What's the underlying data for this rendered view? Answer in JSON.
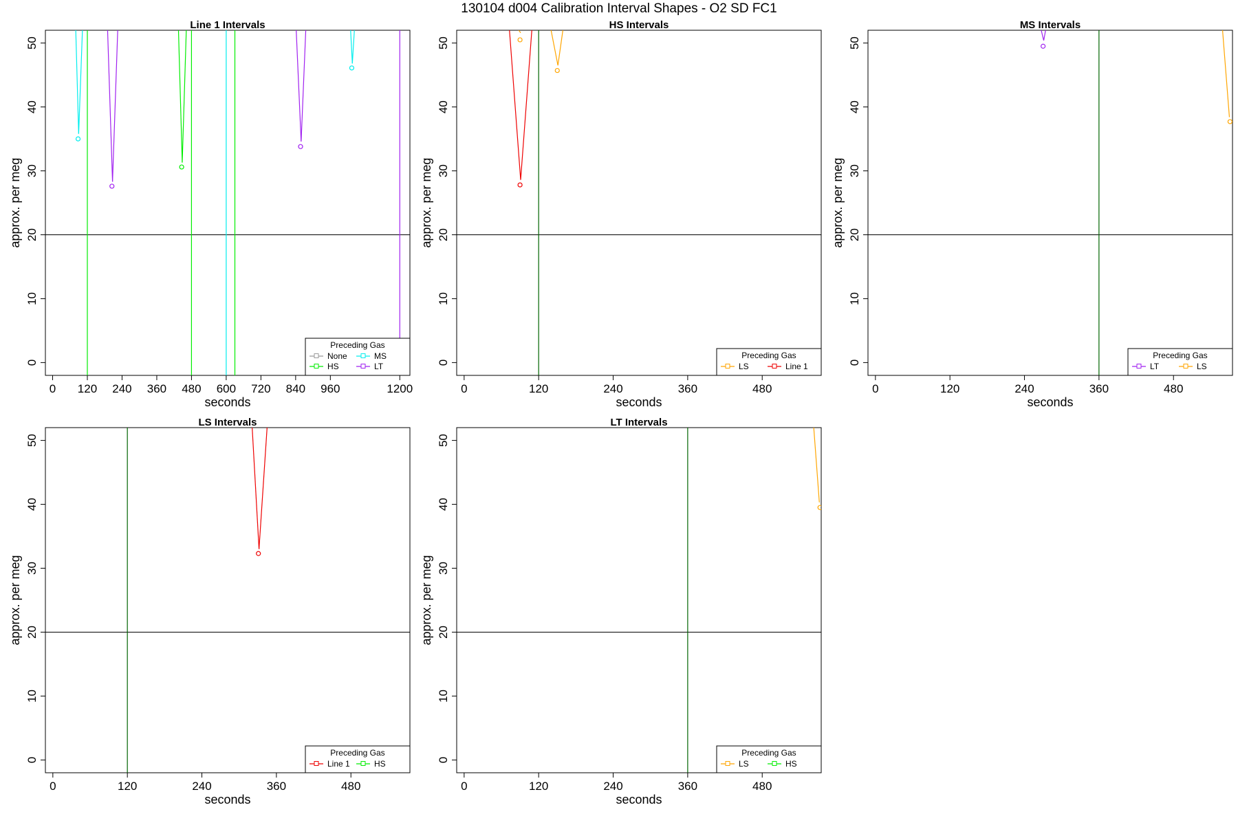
{
  "figure_title": "130104   d004   Calibration Interval Shapes - O2 SD FC1",
  "colors": {
    "None": "#999999",
    "HS": "#00ee00",
    "MS": "#00eeee",
    "LT": "#a020f0",
    "LS": "#ffa500",
    "Line 1": "#ee0000",
    "axis": "#000000",
    "hline": "#000000",
    "vline": "#006400"
  },
  "chart_data": [
    {
      "type": "line",
      "title": "Line 1 Intervals",
      "xlabel": "seconds",
      "ylabel": "approx. per meg",
      "xlim": [
        -25,
        1235
      ],
      "ylim": [
        -2,
        52
      ],
      "xticks": [
        0,
        120,
        240,
        360,
        480,
        600,
        720,
        840,
        960,
        1200
      ],
      "yticks": [
        0,
        10,
        20,
        30,
        40,
        50
      ],
      "hline": 20,
      "vlines": [
        {
          "x": 120,
          "series": "HS"
        },
        {
          "x": 480,
          "series": "HS"
        },
        {
          "x": 600,
          "series": "MS"
        },
        {
          "x": 630,
          "series": "HS"
        },
        {
          "x": 1200,
          "series": "LT"
        }
      ],
      "legend": {
        "title": "Preceding Gas",
        "position": "bottom-right",
        "entries": [
          "None",
          "HS",
          "MS",
          "LT"
        ]
      },
      "series": [
        {
          "name": "MS",
          "lines": [
            [
              [
                80,
                52
              ],
              [
                90,
                35.8
              ]
            ],
            [
              [
                90,
                35.8
              ],
              [
                103,
                52
              ]
            ]
          ],
          "points": [
            [
              88,
              35
            ]
          ]
        },
        {
          "name": "LT",
          "lines": [
            [
              [
                190,
                52
              ],
              [
                207,
                28.3
              ]
            ],
            [
              [
                207,
                28.3
              ],
              [
                225,
                52
              ]
            ]
          ],
          "points": [
            [
              205,
              27.6
            ]
          ]
        },
        {
          "name": "HS",
          "lines": [
            [
              [
                435,
                52
              ],
              [
                448,
                31.3
              ]
            ],
            [
              [
                448,
                31.3
              ],
              [
                462,
                52
              ]
            ]
          ],
          "points": [
            [
              446,
              30.6
            ]
          ]
        },
        {
          "name": "LT",
          "lines": [
            [
              [
                842,
                52
              ],
              [
                859,
                34.6
              ]
            ],
            [
              [
                859,
                34.6
              ],
              [
                875,
                52
              ]
            ]
          ],
          "points": [
            [
              857,
              33.8
            ]
          ]
        },
        {
          "name": "MS",
          "lines": [
            [
              [
                1030,
                52
              ],
              [
                1036,
                46.8
              ]
            ],
            [
              [
                1036,
                46.8
              ],
              [
                1043,
                52
              ]
            ]
          ],
          "points": [
            [
              1034,
              46.1
            ]
          ]
        }
      ]
    },
    {
      "type": "line",
      "title": "HS Intervals",
      "xlabel": "seconds",
      "ylabel": "approx. per meg",
      "xlim": [
        -12,
        575
      ],
      "ylim": [
        -2,
        52
      ],
      "xticks": [
        0,
        120,
        240,
        360,
        480
      ],
      "yticks": [
        0,
        10,
        20,
        30,
        40,
        50
      ],
      "hline": 20,
      "vlines": [
        {
          "x": 120,
          "series": "default"
        }
      ],
      "legend": {
        "title": "Preceding Gas",
        "position": "bottom-right",
        "entries": [
          "LS",
          "Line 1"
        ]
      },
      "series": [
        {
          "name": "Line 1",
          "lines": [
            [
              [
                73,
                52
              ],
              [
                91,
                28.6
              ]
            ],
            [
              [
                91,
                28.6
              ],
              [
                109,
                52
              ]
            ]
          ],
          "points": [
            [
              90,
              27.8
            ]
          ]
        },
        {
          "name": "LS",
          "lines": [
            [
              [
                88,
                52
              ],
              [
                91,
                51.6
              ]
            ]
          ],
          "points": [
            [
              90,
              50.5
            ]
          ]
        },
        {
          "name": "LS",
          "lines": [
            [
              [
                140,
                52
              ],
              [
                151,
                46.5
              ]
            ],
            [
              [
                151,
                46.5
              ],
              [
                159,
                52
              ]
            ]
          ],
          "points": [
            [
              150,
              45.7
            ]
          ]
        }
      ]
    },
    {
      "type": "line",
      "title": "MS Intervals",
      "xlabel": "seconds",
      "ylabel": "approx. per meg",
      "xlim": [
        -12,
        575
      ],
      "ylim": [
        -2,
        52
      ],
      "xticks": [
        0,
        120,
        240,
        360,
        480
      ],
      "yticks": [
        0,
        10,
        20,
        30,
        40,
        50
      ],
      "hline": 20,
      "vlines": [
        {
          "x": 360,
          "series": "default"
        }
      ],
      "legend": {
        "title": "Preceding Gas",
        "position": "bottom-right",
        "entries": [
          "LT",
          "LS"
        ]
      },
      "series": [
        {
          "name": "LT",
          "lines": [
            [
              [
                267,
                52
              ],
              [
                271,
                50.4
              ]
            ],
            [
              [
                271,
                50.4
              ],
              [
                274,
                52
              ]
            ]
          ],
          "points": [
            [
              270,
              49.5
            ]
          ]
        },
        {
          "name": "LS",
          "lines": [
            [
              [
                559,
                52
              ],
              [
                570,
                38.4
              ]
            ]
          ],
          "points": [
            [
              571,
              37.7
            ]
          ]
        }
      ]
    },
    {
      "type": "line",
      "title": "LS Intervals",
      "xlabel": "seconds",
      "ylabel": "approx. per meg",
      "xlim": [
        -12,
        575
      ],
      "ylim": [
        -2,
        52
      ],
      "xticks": [
        0,
        120,
        240,
        360,
        480
      ],
      "yticks": [
        0,
        10,
        20,
        30,
        40,
        50
      ],
      "hline": 20,
      "vlines": [
        {
          "x": 120,
          "series": "default"
        }
      ],
      "legend": {
        "title": "Preceding Gas",
        "position": "bottom-right",
        "entries": [
          "Line 1",
          "HS"
        ]
      },
      "series": [
        {
          "name": "Line 1",
          "lines": [
            [
              [
                321,
                52
              ],
              [
                332,
                33
              ]
            ],
            [
              [
                332,
                33
              ],
              [
                345,
                52
              ]
            ]
          ],
          "points": [
            [
              331,
              32.3
            ]
          ]
        }
      ]
    },
    {
      "type": "line",
      "title": "LT Intervals",
      "xlabel": "seconds",
      "ylabel": "approx. per meg",
      "xlim": [
        -12,
        575
      ],
      "ylim": [
        -2,
        52
      ],
      "xticks": [
        0,
        120,
        240,
        360,
        480
      ],
      "yticks": [
        0,
        10,
        20,
        30,
        40,
        50
      ],
      "hline": 20,
      "vlines": [
        {
          "x": 360,
          "series": "default"
        }
      ],
      "legend": {
        "title": "Preceding Gas",
        "position": "bottom-right",
        "entries": [
          "LS",
          "HS"
        ]
      },
      "series": [
        {
          "name": "LS",
          "lines": [
            [
              [
                563,
                52
              ],
              [
                572,
                40.3
              ]
            ]
          ],
          "points": [
            [
              573,
              39.5
            ]
          ]
        }
      ]
    }
  ]
}
